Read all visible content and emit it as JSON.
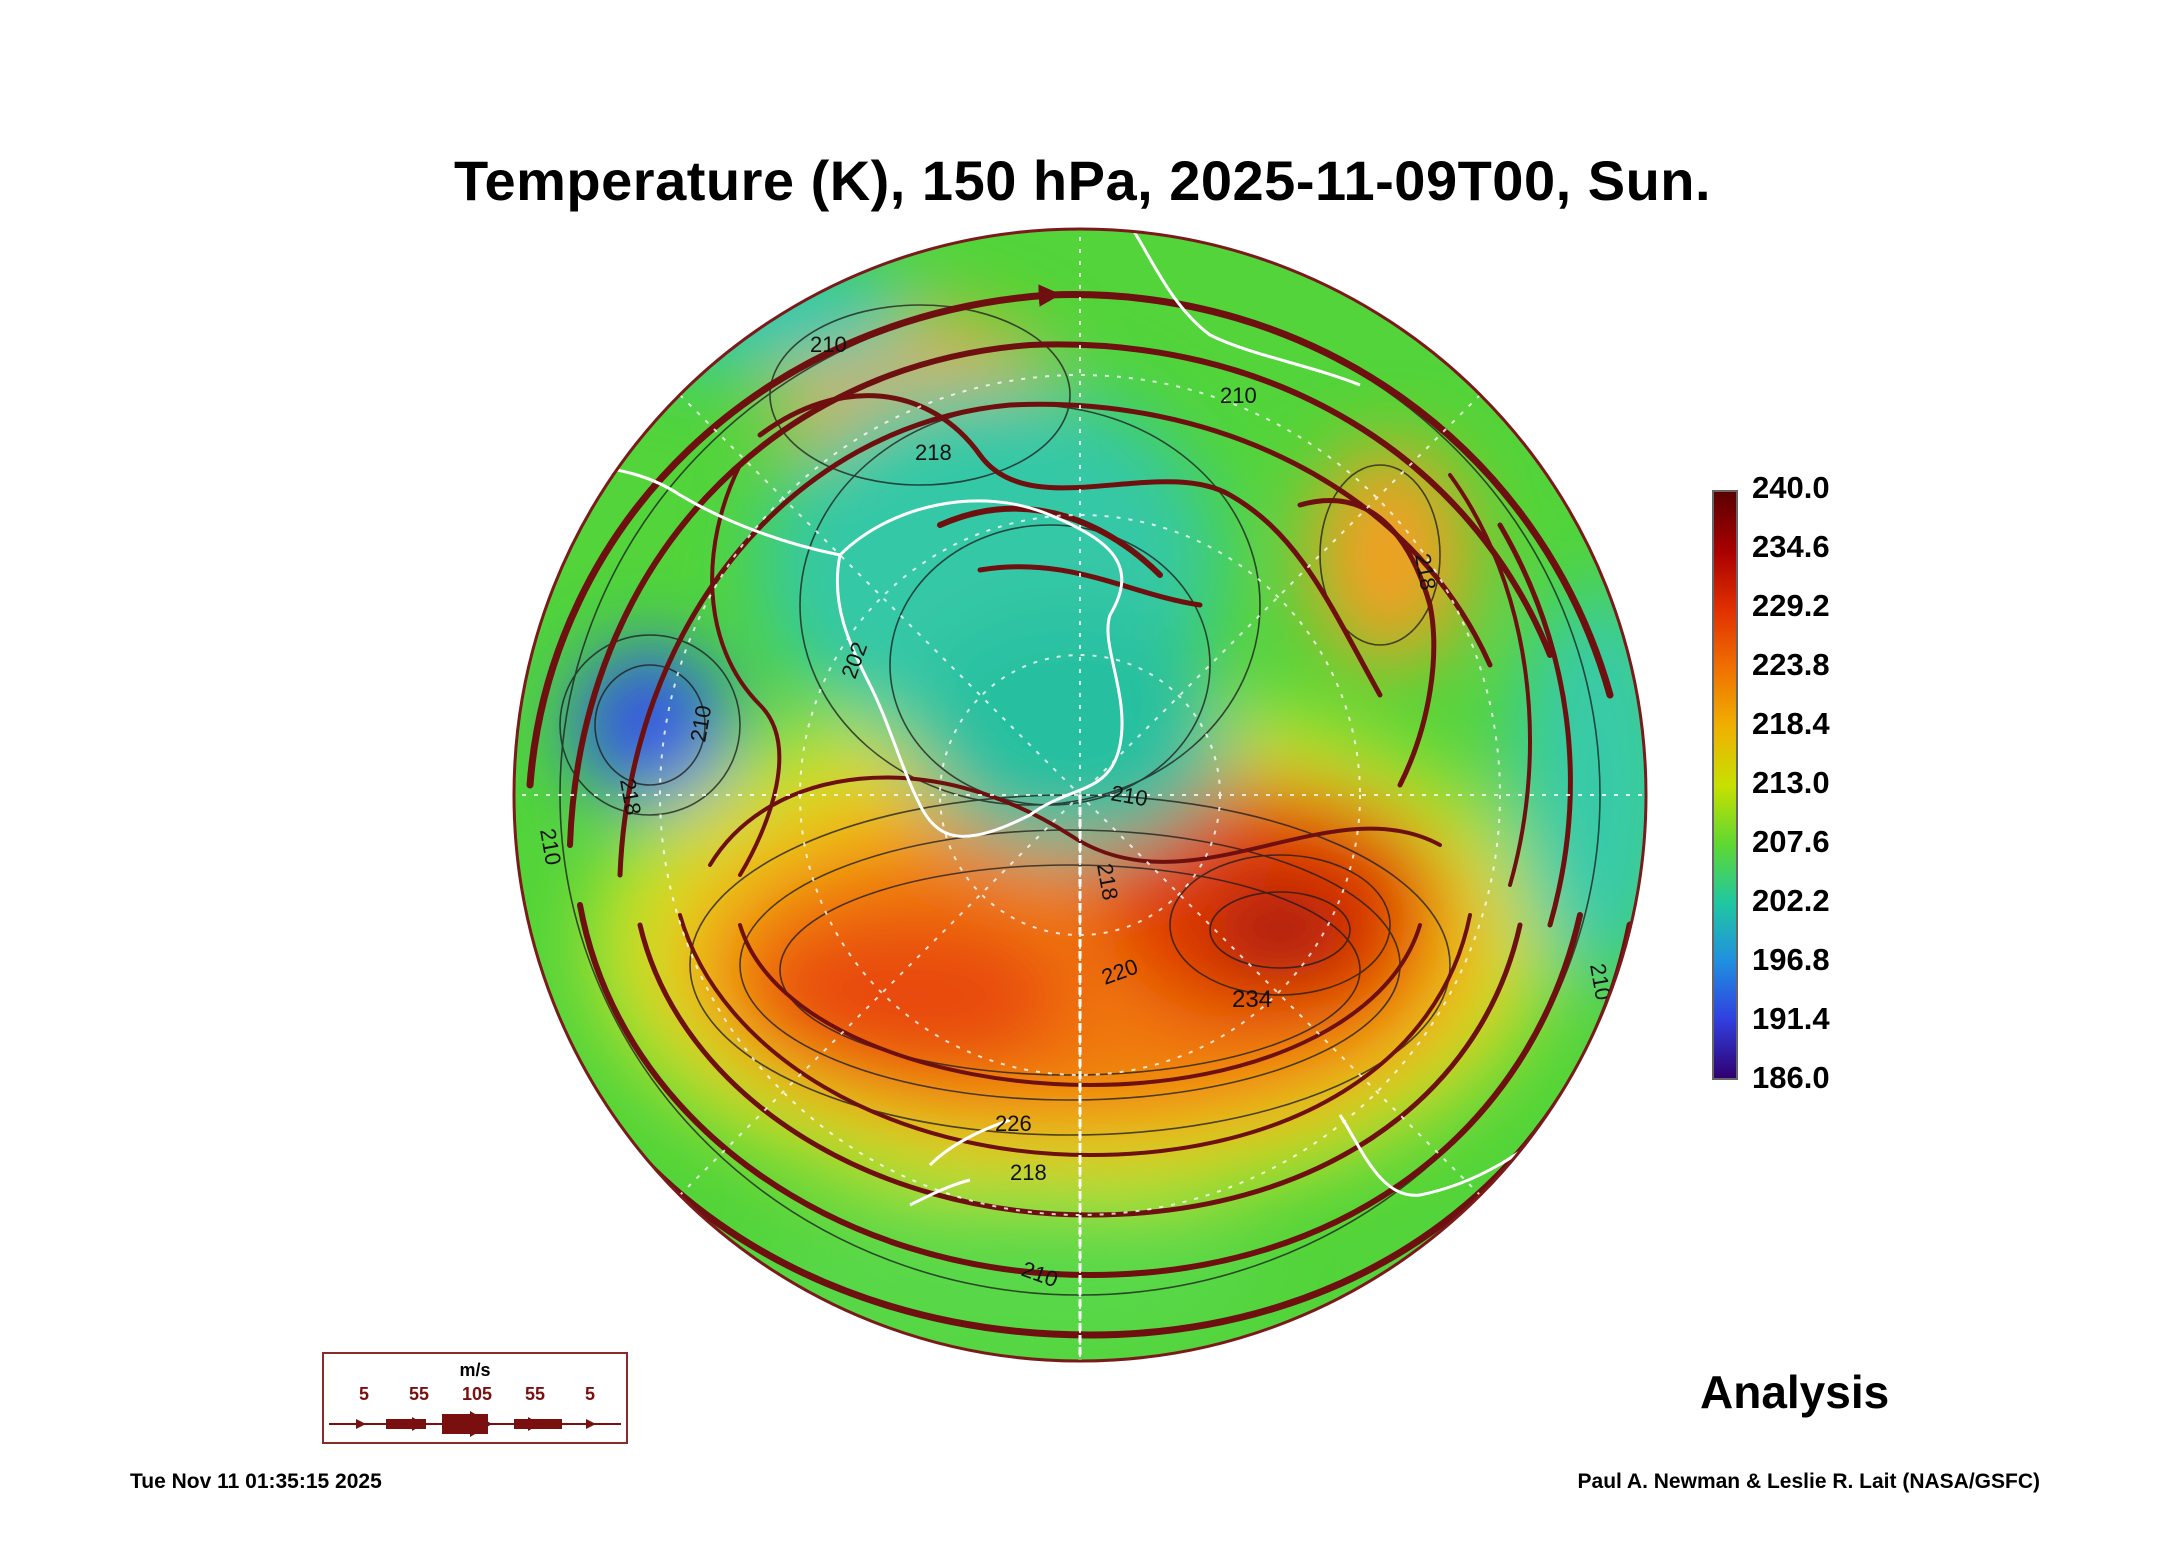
{
  "header": {
    "title": "Temperature (K), 150 hPa, 2025-11-09T00, Sun."
  },
  "map": {
    "projection": "south-polar-stereographic",
    "contour_labels": [
      "210",
      "218",
      "210",
      "202",
      "210",
      "218",
      "210",
      "218",
      "210",
      "210",
      "220",
      "234",
      "226",
      "218",
      "218",
      "210"
    ]
  },
  "colorbar": {
    "labels": [
      "240.0",
      "234.6",
      "229.2",
      "223.8",
      "218.4",
      "213.0",
      "207.6",
      "202.2",
      "196.8",
      "191.4",
      "186.0"
    ],
    "colors": [
      "#5a0000",
      "#a80000",
      "#e03000",
      "#f07000",
      "#f0b000",
      "#c8e000",
      "#60d830",
      "#20c8a0",
      "#2090e0",
      "#3040e0",
      "#300070"
    ]
  },
  "wind_legend": {
    "unit": "m/s",
    "speeds": [
      "5",
      "55",
      "105",
      "55",
      "5"
    ],
    "color": "#7a0f0f"
  },
  "footer": {
    "analysis_label": "Analysis",
    "timestamp": "Tue Nov 11 01:35:15 2025",
    "credit": "Paul A. Newman & Leslie R. Lait (NASA/GSFC)"
  }
}
